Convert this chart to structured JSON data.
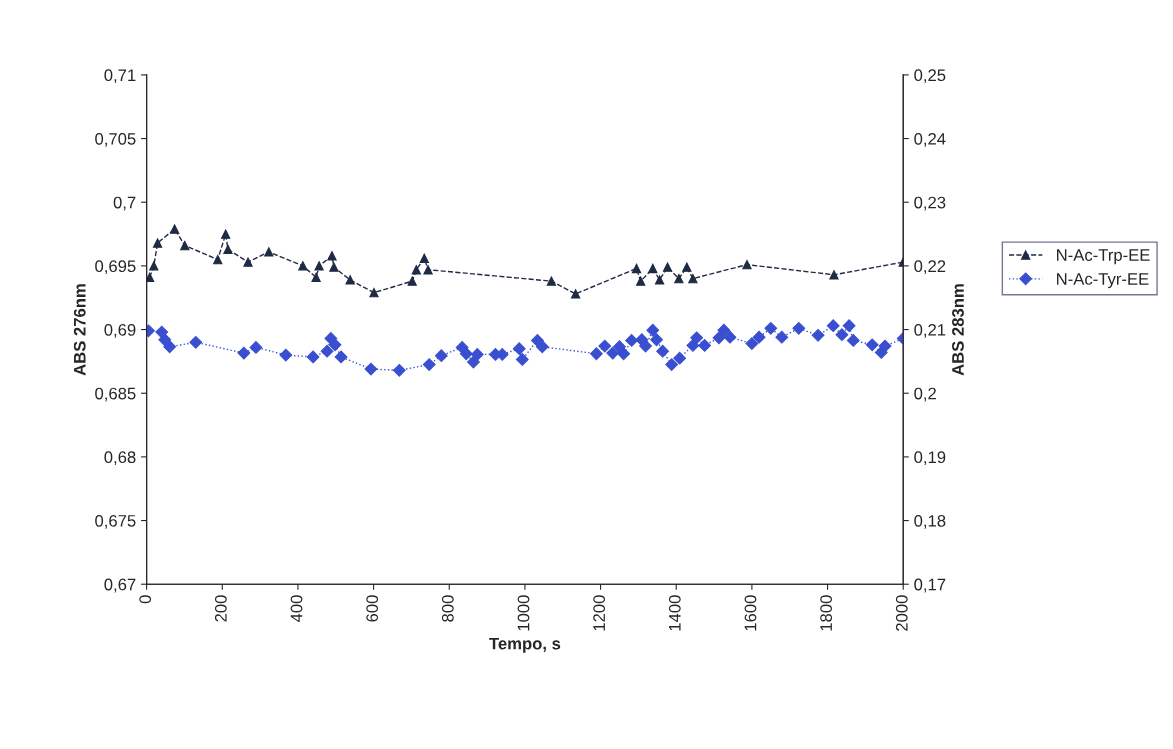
{
  "chart_data": {
    "type": "line",
    "xlabel": "Tempo, s",
    "ylabel": "ABS 276nm",
    "y2label": "ABS 283nm",
    "xlim": [
      0,
      2000
    ],
    "xticks": [
      0,
      200,
      400,
      600,
      800,
      1000,
      1200,
      1400,
      1600,
      1800,
      2000
    ],
    "ylim": [
      0.67,
      0.71
    ],
    "yticks": [
      {
        "value": 0.67,
        "label": "0,67"
      },
      {
        "value": 0.675,
        "label": "0,675"
      },
      {
        "value": 0.68,
        "label": "0,68"
      },
      {
        "value": 0.685,
        "label": "0,685"
      },
      {
        "value": 0.69,
        "label": "0,69"
      },
      {
        "value": 0.695,
        "label": "0,695"
      },
      {
        "value": 0.7,
        "label": "0,7"
      },
      {
        "value": 0.705,
        "label": "0,705"
      },
      {
        "value": 0.71,
        "label": "0,71"
      }
    ],
    "y2lim": [
      0.17,
      0.25
    ],
    "y2ticks": [
      {
        "value": 0.17,
        "label": "0,17"
      },
      {
        "value": 0.18,
        "label": "0,18"
      },
      {
        "value": 0.19,
        "label": "0,19"
      },
      {
        "value": 0.2,
        "label": "0,2"
      },
      {
        "value": 0.21,
        "label": "0,21"
      },
      {
        "value": 0.22,
        "label": "0,22"
      },
      {
        "value": 0.23,
        "label": "0,23"
      },
      {
        "value": 0.24,
        "label": "0,24"
      },
      {
        "value": 0.25,
        "label": "0,25"
      }
    ],
    "grid": false,
    "legend": "right",
    "series": [
      {
        "name": "N-Ac-Trp-EE",
        "color": "#1f2a44",
        "marker": "triangle",
        "line_style": "dashed",
        "x": [
          8,
          19,
          29,
          74,
          101,
          188,
          209,
          215,
          268,
          323,
          413,
          448,
          456,
          490,
          495,
          538,
          601,
          702,
          713,
          734,
          744,
          1070,
          1134,
          1295,
          1306,
          1338,
          1356,
          1377,
          1407,
          1428,
          1444,
          1587,
          1817,
          2000
        ],
        "values": [
          0.6941,
          0.695,
          0.6968,
          0.6979,
          0.6966,
          0.6955,
          0.6975,
          0.6963,
          0.6953,
          0.6961,
          0.695,
          0.6941,
          0.695,
          0.6958,
          0.6949,
          0.6939,
          0.6929,
          0.6938,
          0.6947,
          0.6956,
          0.6947,
          0.6938,
          0.6928,
          0.6948,
          0.6938,
          0.6948,
          0.6939,
          0.6949,
          0.694,
          0.6949,
          0.694,
          0.6951,
          0.6943,
          0.6953
        ]
      },
      {
        "name": "N-Ac-Tyr-EE",
        "color": "#3a4fd0",
        "marker": "diamond",
        "line_style": "dotted",
        "axis": "y2",
        "x": [
          5,
          40,
          48,
          61,
          130,
          257,
          289,
          368,
          440,
          477,
          487,
          498,
          514,
          593,
          668,
          747,
          779,
          834,
          845,
          864,
          874,
          922,
          940,
          985,
          993,
          1033,
          1046,
          1189,
          1211,
          1232,
          1250,
          1261,
          1282,
          1309,
          1319,
          1338,
          1348,
          1364,
          1388,
          1409,
          1444,
          1454,
          1475,
          1513,
          1526,
          1542,
          1600,
          1619,
          1650,
          1679,
          1724,
          1775,
          1815,
          1838,
          1857,
          1868,
          1918,
          1942,
          1952,
          2000
        ],
        "values": [
          0.2098,
          0.2096,
          0.2084,
          0.2073,
          0.208,
          0.2063,
          0.2072,
          0.206,
          0.2057,
          0.2066,
          0.2086,
          0.2076,
          0.2057,
          0.2038,
          0.2036,
          0.2045,
          0.2059,
          0.2072,
          0.2062,
          0.2049,
          0.2061,
          0.2061,
          0.2061,
          0.207,
          0.2053,
          0.2083,
          0.2073,
          0.2062,
          0.2074,
          0.2063,
          0.2073,
          0.2062,
          0.2083,
          0.2084,
          0.2074,
          0.2099,
          0.2084,
          0.2066,
          0.2045,
          0.2055,
          0.2075,
          0.2087,
          0.2075,
          0.2087,
          0.2099,
          0.2088,
          0.2078,
          0.2088,
          0.2102,
          0.2088,
          0.2102,
          0.2091,
          0.2106,
          0.2092,
          0.2106,
          0.2083,
          0.2076,
          0.2064,
          0.2074,
          0.2086
        ]
      }
    ]
  }
}
